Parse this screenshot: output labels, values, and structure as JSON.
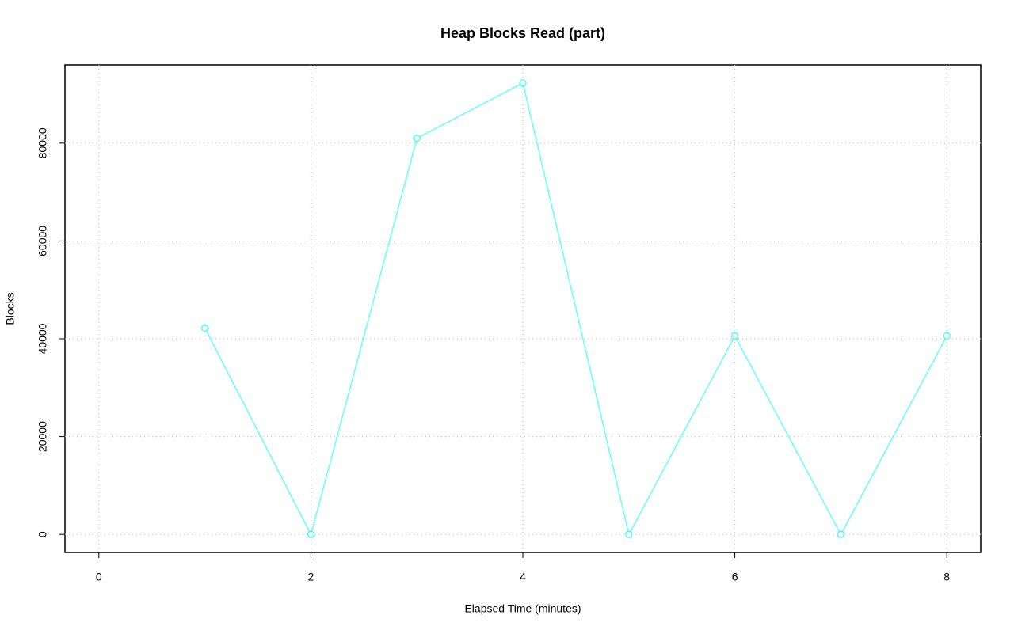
{
  "chart_data": {
    "type": "line",
    "title": "Heap Blocks Read (part)",
    "x_label": "Elapsed Time (minutes)",
    "y_label": "Blocks",
    "x": [
      1,
      2,
      3,
      4,
      5,
      6,
      7,
      8
    ],
    "series": [
      {
        "name": "Blocks",
        "color": "#00ffff",
        "values": [
          42200,
          0,
          81000,
          92300,
          0,
          40600,
          0,
          40600
        ]
      }
    ],
    "xlim": [
      -0.32,
      8.32
    ],
    "xticks": [
      0,
      2,
      4,
      6,
      8
    ],
    "ylim": [
      -3692,
      95992
    ],
    "yticks": [
      0,
      20000,
      40000,
      60000,
      80000
    ],
    "grid": true
  }
}
